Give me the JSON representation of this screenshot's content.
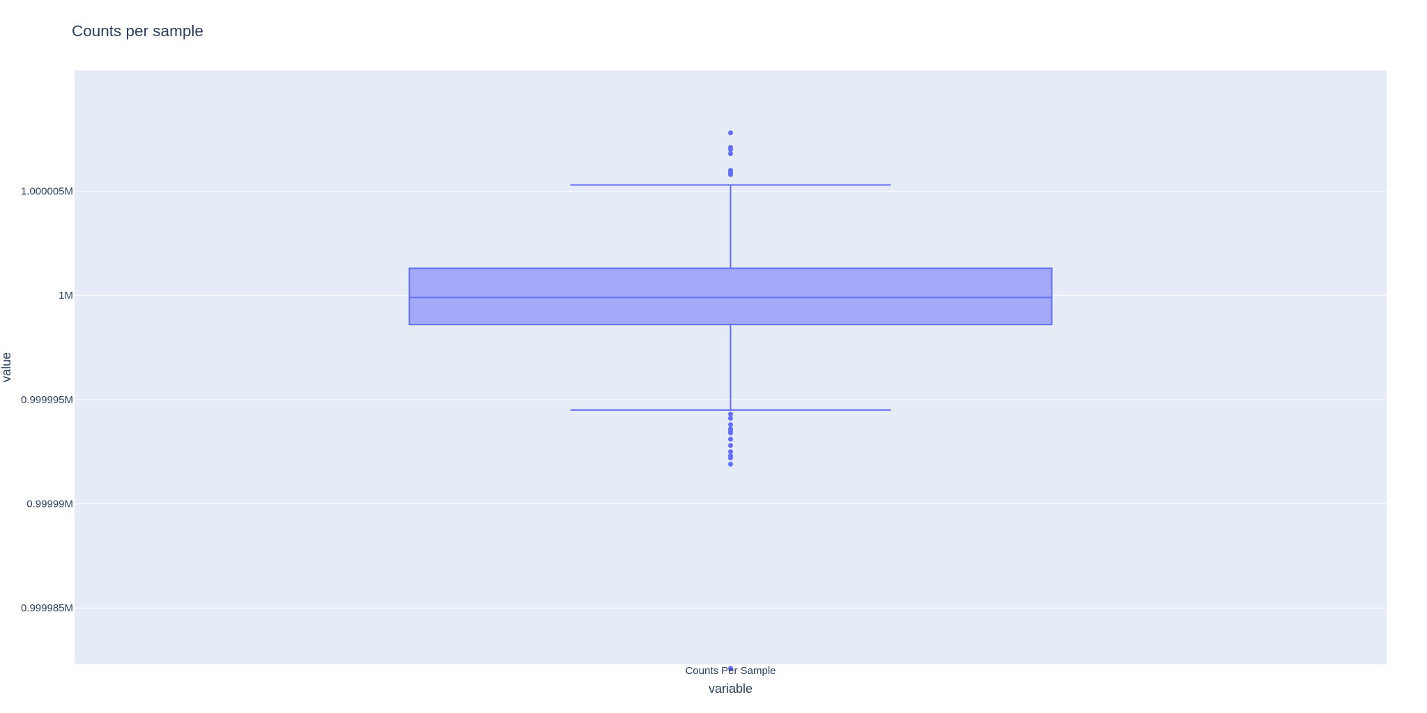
{
  "chart_data": {
    "type": "box",
    "title": "Counts per sample",
    "xlabel": "variable",
    "ylabel": "value",
    "categories": [
      "Counts Per Sample"
    ],
    "y_ticks": [
      {
        "value": 999985,
        "label": "0.999985M"
      },
      {
        "value": 999990,
        "label": "0.99999M"
      },
      {
        "value": 999995,
        "label": "0.999995M"
      },
      {
        "value": 1000000,
        "label": "1M"
      },
      {
        "value": 1000005,
        "label": "1.000005M"
      }
    ],
    "ylim": [
      999982.3,
      1000010.8
    ],
    "grid": true,
    "box": {
      "category": "Counts Per Sample",
      "lowerfence": 999994.5,
      "q1": 999998.6,
      "median": 999999.9,
      "q3": 1000001.3,
      "upperfence": 1000005.3,
      "outliers": [
        1000007.8,
        1000007.1,
        1000007.0,
        1000006.8,
        1000006.0,
        1000005.9,
        1000005.8,
        999994.3,
        999994.1,
        999993.8,
        999993.6,
        999993.5,
        999993.4,
        999993.1,
        999992.8,
        999992.5,
        999992.3,
        999992.2,
        999991.9,
        999982.1
      ]
    },
    "colors": {
      "plot_bg": "#e5ecf6",
      "grid": "#ffffff",
      "box_line": "#636efa",
      "box_fill": "#a4aaf8",
      "text": "#2a3f5f"
    }
  }
}
